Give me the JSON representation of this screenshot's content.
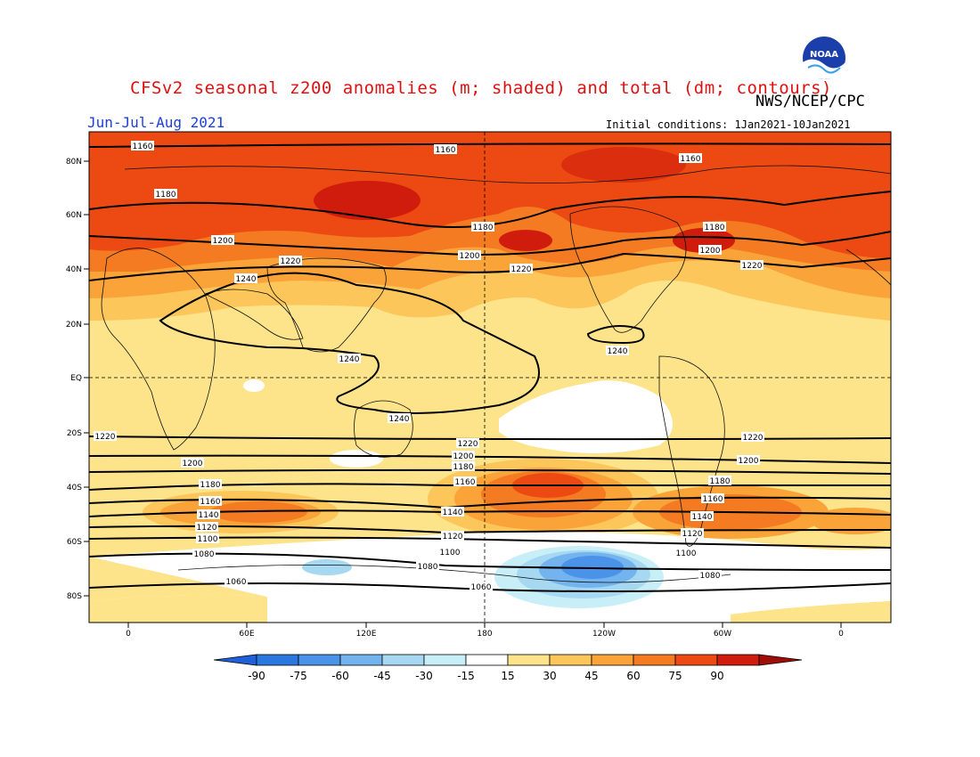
{
  "title": "CFSv2 seasonal z200 anomalies (m; shaded) and total (dm; contours)",
  "agency": "NWS/NCEP/CPC",
  "period": "Jun-Jul-Aug 2021",
  "initial_conditions": "Initial conditions: 1Jan2021-10Jan2021",
  "logo_text": "NOAA",
  "map": {
    "lat_ticks": [
      "80N",
      "60N",
      "40N",
      "20N",
      "EQ",
      "20S",
      "40S",
      "60S",
      "80S"
    ],
    "lon_ticks": [
      "0",
      "60E",
      "120E",
      "180",
      "120W",
      "60W",
      "0"
    ]
  },
  "colorbar": {
    "labels": [
      "-90",
      "-75",
      "-60",
      "-45",
      "-30",
      "-15",
      "15",
      "30",
      "45",
      "60",
      "75",
      "90"
    ],
    "colors": [
      "#1f5fd8",
      "#2b77e0",
      "#4a93e8",
      "#74b4ee",
      "#a6d8f2",
      "#c8eef8",
      "#ffffff",
      "#fde48a",
      "#fcc65a",
      "#f9a338",
      "#f47b22",
      "#ec4a12",
      "#cf1c0c",
      "#a00c06"
    ]
  },
  "contours": {
    "labels": [
      "1160",
      "1160",
      "1160",
      "1180",
      "1180",
      "1180",
      "1200",
      "1200",
      "1200",
      "1220",
      "1220",
      "1220",
      "1240",
      "1240",
      "1240",
      "1240",
      "1220",
      "1220",
      "1220",
      "1200",
      "1200",
      "1200",
      "1180",
      "1180",
      "1180",
      "1160",
      "1160",
      "1160",
      "1140",
      "1140",
      "1140",
      "1120",
      "1120",
      "1120",
      "1100",
      "1100",
      "1100",
      "1080",
      "1080",
      "1080",
      "1060",
      "1060"
    ]
  }
}
